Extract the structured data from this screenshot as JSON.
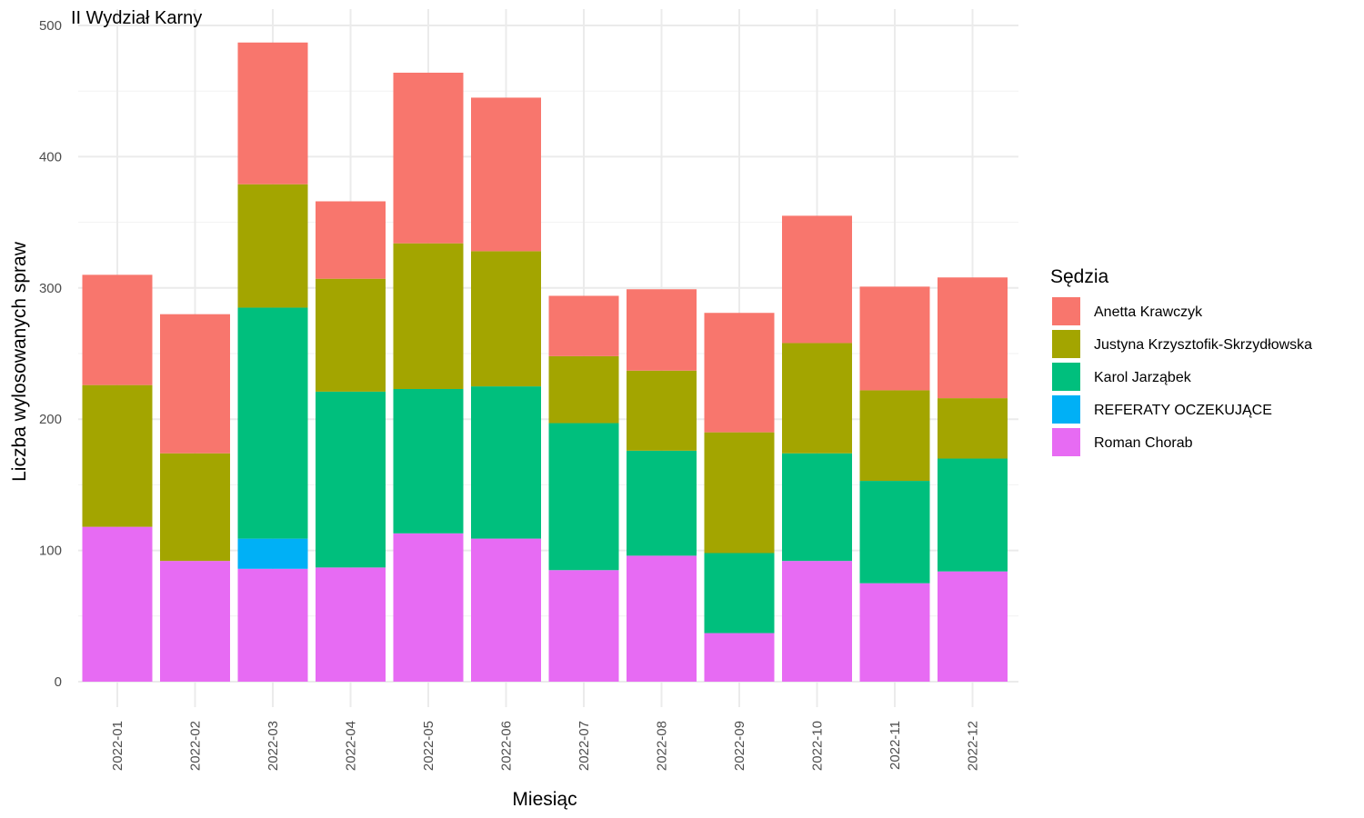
{
  "chart_data": {
    "type": "bar",
    "stacked": true,
    "title": "II Wydział Karny",
    "xlabel": "Miesiąc",
    "ylabel": "Liczba wylosowanych spraw",
    "ylim": [
      0,
      500
    ],
    "yticks": [
      "0",
      "100",
      "200",
      "300",
      "400",
      "500"
    ],
    "grid": true,
    "legend_position": "right",
    "legend_title": "Sędzia",
    "categories": [
      "2022-01",
      "2022-02",
      "2022-03",
      "2022-04",
      "2022-05",
      "2022-06",
      "2022-07",
      "2022-08",
      "2022-09",
      "2022-10",
      "2022-11",
      "2022-12"
    ],
    "series": [
      {
        "name": "Roman Chorab",
        "color": "#E76BF3",
        "values": [
          118,
          92,
          86,
          87,
          113,
          109,
          85,
          96,
          37,
          92,
          75,
          84
        ]
      },
      {
        "name": "REFERATY OCZEKUJĄCE",
        "color": "#00B0F6",
        "values": [
          0,
          0,
          23,
          0,
          0,
          0,
          0,
          0,
          0,
          0,
          0,
          0
        ]
      },
      {
        "name": "Karol Jarząbek",
        "color": "#00BF7D",
        "values": [
          0,
          0,
          176,
          134,
          110,
          116,
          112,
          80,
          61,
          82,
          78,
          86
        ]
      },
      {
        "name": "Justyna Krzysztofik-Skrzydłowska",
        "color": "#A3A500",
        "values": [
          108,
          82,
          94,
          86,
          111,
          103,
          51,
          61,
          92,
          84,
          69,
          46
        ]
      },
      {
        "name": "Anetta Krawczyk",
        "color": "#F8766D",
        "values": [
          84,
          106,
          108,
          59,
          130,
          117,
          46,
          62,
          91,
          97,
          79,
          92
        ]
      }
    ],
    "legend_order": [
      "Anetta Krawczyk",
      "Justyna Krzysztofik-Skrzydłowska",
      "Karol Jarząbek",
      "REFERATY OCZEKUJĄCE",
      "Roman Chorab"
    ]
  }
}
